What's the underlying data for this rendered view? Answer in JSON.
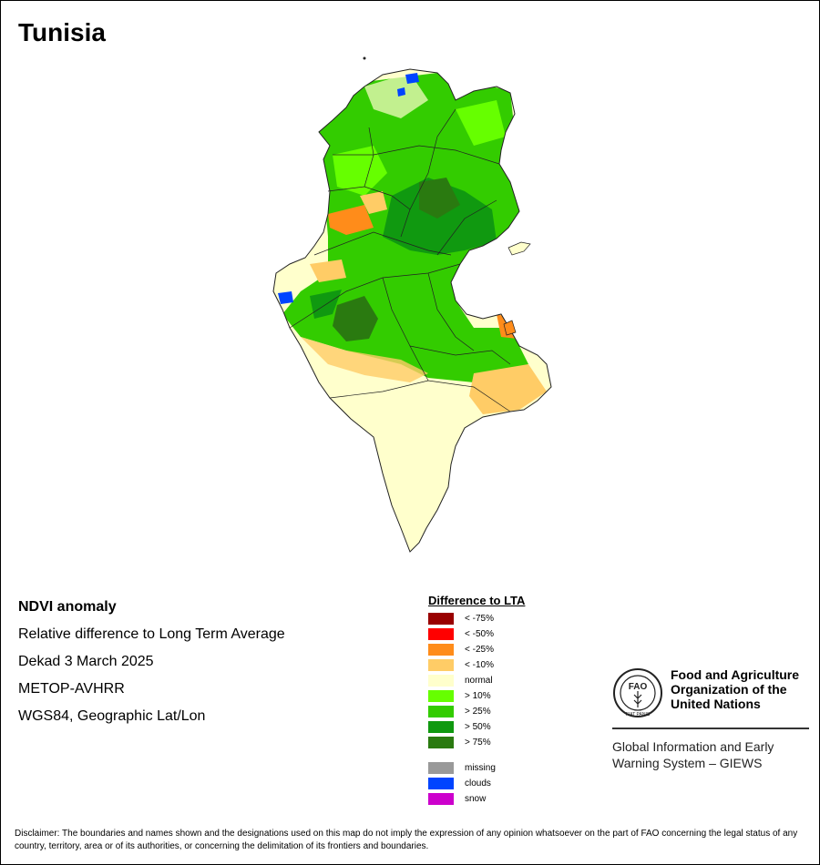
{
  "title": "Tunisia",
  "info": {
    "product": "NDVI anomaly",
    "description": "Relative difference to Long Term Average",
    "period": "Dekad 3 March 2025",
    "sensor": "METOP-AVHRR",
    "projection": "WGS84, Geographic Lat/Lon"
  },
  "legend": {
    "title": "Difference to LTA",
    "classes": [
      {
        "label": "< -75%",
        "color": "#990000"
      },
      {
        "label": "< -50%",
        "color": "#ff0000"
      },
      {
        "label": "< -25%",
        "color": "#ff8c1a"
      },
      {
        "label": "< -10%",
        "color": "#ffcc66"
      },
      {
        "label": "normal",
        "color": "#ffffcc"
      },
      {
        "label": "> 10%",
        "color": "#66ff00"
      },
      {
        "label": "> 25%",
        "color": "#33cc00"
      },
      {
        "label": "> 50%",
        "color": "#109910"
      },
      {
        "label": "> 75%",
        "color": "#2a7a10"
      }
    ],
    "extra": [
      {
        "label": "missing",
        "color": "#999999"
      },
      {
        "label": "clouds",
        "color": "#0044ff"
      },
      {
        "label": "snow",
        "color": "#cc00cc"
      }
    ]
  },
  "org": {
    "name_line1": "Food and Agriculture",
    "name_line2": "Organization of the",
    "name_line3": "United Nations",
    "system_line1": "Global Information and Early",
    "system_line2": "Warning System – GIEWS",
    "logo_text": "FAO",
    "logo_motto": "FIAT PANIS"
  },
  "disclaimer": "Disclaimer: The boundaries and names shown and the designations used on this map do not imply the expression of any opinion whatsoever on the part of FAO concerning the legal status of any country, territory, area or of its authorities, or concerning the delimitation of its frontiers and boundaries."
}
